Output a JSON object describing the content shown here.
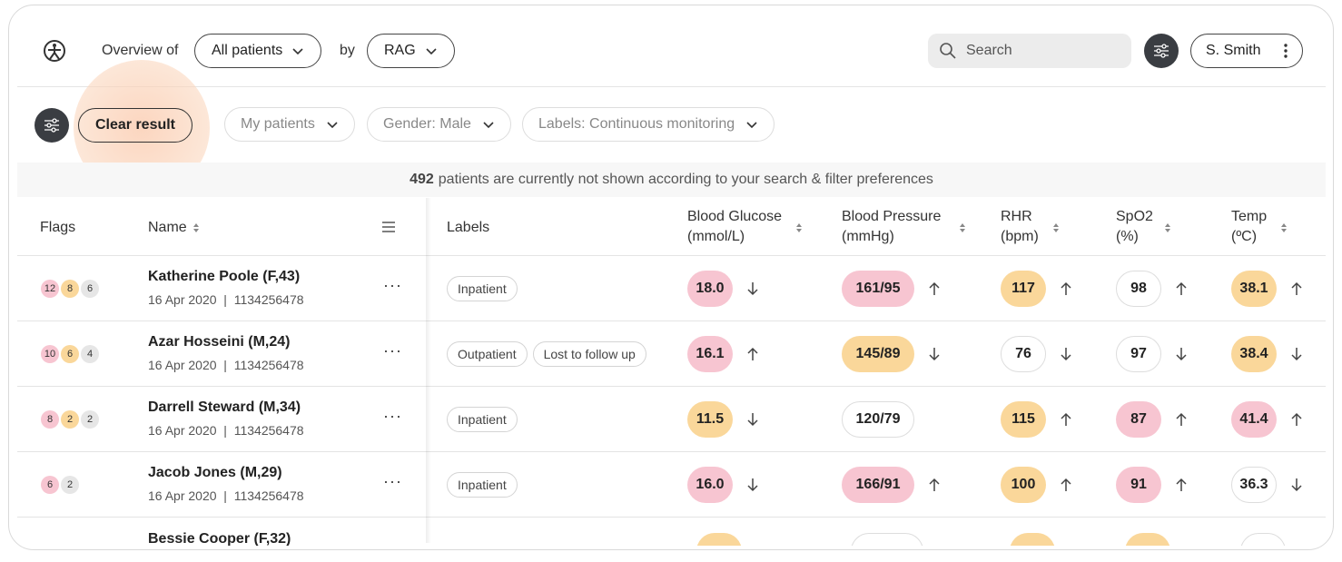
{
  "header": {
    "overview_label": "Overview of",
    "patients_select": "All patients",
    "by_label": "by",
    "group_select": "RAG",
    "search_placeholder": "Search",
    "user_name": "S. Smith",
    "user_menu_icon": "kebab-icon"
  },
  "filters": {
    "clear_label": "Clear result",
    "pills": [
      "My patients",
      "Gender: Male",
      "Labels: Continuous monitoring"
    ]
  },
  "notice": {
    "count": "492",
    "text": "patients are currently not shown according to your search & filter preferences"
  },
  "table": {
    "columns": {
      "flags": "Flags",
      "name": "Name",
      "labels": "Labels",
      "glucose_1": "Blood Glucose",
      "glucose_2": "(mmol/L)",
      "bp_1": "Blood Pressure",
      "bp_2": "(mmHg)",
      "rhr_1": "RHR",
      "rhr_2": "(bpm)",
      "spo2_1": "SpO2",
      "spo2_2": "(%)",
      "temp_1": "Temp",
      "temp_2": "(ºC)"
    },
    "rows": [
      {
        "flags": [
          {
            "v": "12",
            "c": "red"
          },
          {
            "v": "8",
            "c": "amber"
          },
          {
            "v": "6",
            "c": "grey"
          }
        ],
        "name": "Katherine Poole (F,43)",
        "date": "16 Apr 2020",
        "id": "1134256478",
        "labels": [
          "Inpatient"
        ],
        "glucose": {
          "v": "18.0",
          "c": "red",
          "trend": "down"
        },
        "bp": {
          "v": "161/95",
          "c": "red",
          "trend": "up"
        },
        "rhr": {
          "v": "117",
          "c": "amber",
          "trend": "up"
        },
        "spo2": {
          "v": "98",
          "c": "none",
          "trend": "up"
        },
        "temp": {
          "v": "38.1",
          "c": "amber",
          "trend": "up"
        }
      },
      {
        "flags": [
          {
            "v": "10",
            "c": "red"
          },
          {
            "v": "6",
            "c": "amber"
          },
          {
            "v": "4",
            "c": "grey"
          }
        ],
        "name": "Azar Hosseini (M,24)",
        "date": "16 Apr 2020",
        "id": "1134256478",
        "labels": [
          "Outpatient",
          "Lost to follow up"
        ],
        "glucose": {
          "v": "16.1",
          "c": "red",
          "trend": "up"
        },
        "bp": {
          "v": "145/89",
          "c": "amber",
          "trend": "down"
        },
        "rhr": {
          "v": "76",
          "c": "none",
          "trend": "down"
        },
        "spo2": {
          "v": "97",
          "c": "none",
          "trend": "down"
        },
        "temp": {
          "v": "38.4",
          "c": "amber",
          "trend": "down"
        }
      },
      {
        "flags": [
          {
            "v": "8",
            "c": "red"
          },
          {
            "v": "2",
            "c": "amber"
          },
          {
            "v": "2",
            "c": "grey"
          }
        ],
        "name": "Darrell Steward (M,34)",
        "date": "16 Apr 2020",
        "id": "1134256478",
        "labels": [
          "Inpatient"
        ],
        "glucose": {
          "v": "11.5",
          "c": "amber",
          "trend": "down"
        },
        "bp": {
          "v": "120/79",
          "c": "none",
          "trend": ""
        },
        "rhr": {
          "v": "115",
          "c": "amber",
          "trend": "up"
        },
        "spo2": {
          "v": "87",
          "c": "red",
          "trend": "up"
        },
        "temp": {
          "v": "41.4",
          "c": "red",
          "trend": "up"
        }
      },
      {
        "flags": [
          {
            "v": "6",
            "c": "red"
          },
          {
            "v": "2",
            "c": "grey"
          }
        ],
        "name": "Jacob Jones (M,29)",
        "date": "16 Apr 2020",
        "id": "1134256478",
        "labels": [
          "Inpatient"
        ],
        "glucose": {
          "v": "16.0",
          "c": "red",
          "trend": "down"
        },
        "bp": {
          "v": "166/91",
          "c": "red",
          "trend": "up"
        },
        "rhr": {
          "v": "100",
          "c": "amber",
          "trend": "up"
        },
        "spo2": {
          "v": "91",
          "c": "red",
          "trend": "up"
        },
        "temp": {
          "v": "36.3",
          "c": "none",
          "trend": "down"
        }
      }
    ],
    "partial_row_name": "Bessie Cooper (F,32)"
  },
  "colors": {
    "red_chip": "#f7c5d1",
    "amber_chip": "#fad79a",
    "grey_chip": "#e6e6e6",
    "dark_button": "#3a3d42"
  }
}
